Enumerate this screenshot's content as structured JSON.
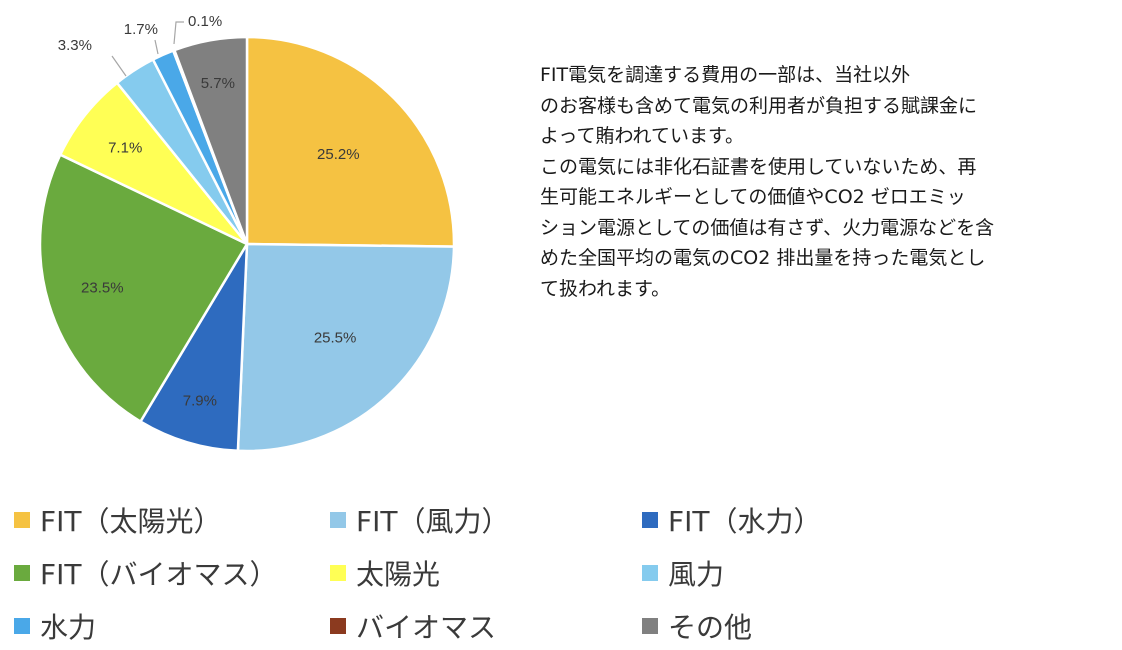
{
  "chart_data": {
    "type": "pie",
    "title": "",
    "categories": [
      "FIT（太陽光）",
      "FIT（風力）",
      "FIT（水力）",
      "FIT（バイオマス）",
      "太陽光",
      "風力",
      "水力",
      "バイオマス",
      "その他"
    ],
    "values": [
      25.2,
      25.5,
      7.9,
      23.5,
      7.1,
      3.3,
      1.7,
      0.1,
      5.7
    ],
    "labels": [
      "25.2%",
      "25.5%",
      "7.9%",
      "23.5%",
      "7.1%",
      "3.3%",
      "1.7%",
      "0.1%",
      "5.7%"
    ],
    "colors": [
      "#f5c242",
      "#93c8e8",
      "#2e6bbf",
      "#6aaa3e",
      "#ffff55",
      "#85cbee",
      "#4aa8e8",
      "#8b3a1f",
      "#808080"
    ],
    "start_angle_deg": 0,
    "direction": "clockwise",
    "legend_position": "bottom"
  },
  "description": {
    "lines": [
      "FIT電気を調達する費用の一部は、当社以外",
      "のお客様も含めて電気の利用者が負担する賦課金に",
      "よって賄われています。",
      "この電気には非化石証書を使用していないため、再",
      "生可能エネルギーとしての価値やCO2 ゼロエミッ",
      "ション電源としての価値は有さず、火力電源などを含",
      "めた全国平均の電気のCO2 排出量を持った電気とし",
      "て扱われます。"
    ]
  },
  "legend": {
    "items": [
      "FIT（太陽光）",
      "FIT（風力）",
      "FIT（水力）",
      "FIT（バイオマス）",
      "太陽光",
      "風力",
      "水力",
      "バイオマス",
      "その他"
    ]
  }
}
